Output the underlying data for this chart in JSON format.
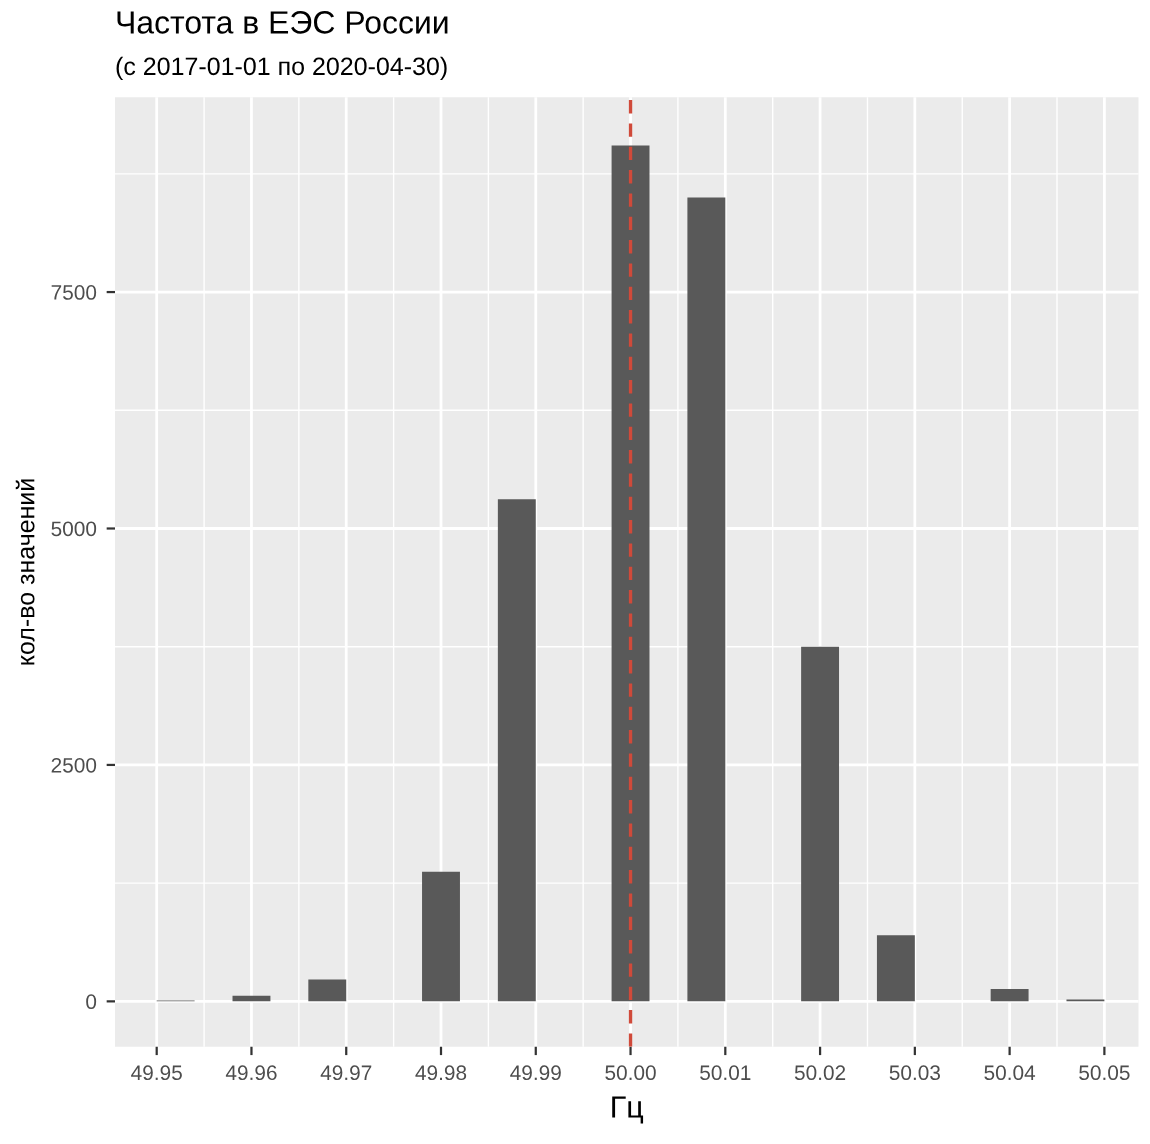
{
  "chart_data": {
    "type": "histogram",
    "title": "Частота в ЕЭС России",
    "subtitle": "(с 2017-01-01 по 2020-04-30)",
    "xlabel": "Гц",
    "ylabel": "кол-во значений",
    "bins": [
      49.95,
      49.954,
      49.958,
      49.962,
      49.966,
      49.97,
      49.974,
      49.978,
      49.982,
      49.986,
      49.99,
      49.994,
      49.998,
      50.002,
      50.006,
      50.01,
      50.014,
      50.018,
      50.022,
      50.026,
      50.03,
      50.034,
      50.038,
      50.042,
      50.046,
      50.05
    ],
    "values": [
      10,
      0,
      60,
      0,
      230,
      0,
      0,
      1370,
      0,
      5310,
      0,
      0,
      9050,
      0,
      8500,
      0,
      0,
      3750,
      0,
      700,
      0,
      0,
      130,
      0,
      20
    ],
    "color": "#595959",
    "xlim": [
      49.9456,
      50.0536
    ],
    "xticks": [
      {
        "value": 49.95,
        "label": "49.95"
      },
      {
        "value": 49.96,
        "label": "49.96"
      },
      {
        "value": 49.97,
        "label": "49.97"
      },
      {
        "value": 49.98,
        "label": "49.98"
      },
      {
        "value": 49.99,
        "label": "49.99"
      },
      {
        "value": 50.0,
        "label": "50.00"
      },
      {
        "value": 50.01,
        "label": "50.01"
      },
      {
        "value": 50.02,
        "label": "50.02"
      },
      {
        "value": 50.03,
        "label": "50.03"
      },
      {
        "value": 50.04,
        "label": "50.04"
      },
      {
        "value": 50.05,
        "label": "50.05"
      }
    ],
    "ylim": [
      -480,
      9560
    ],
    "yticks": [
      0,
      2500,
      5000,
      7500
    ],
    "ref_lines": [
      {
        "axis": "x",
        "value": 50.0,
        "color": "#d04a3a",
        "line_style": "dashed"
      }
    ],
    "grid": true
  }
}
